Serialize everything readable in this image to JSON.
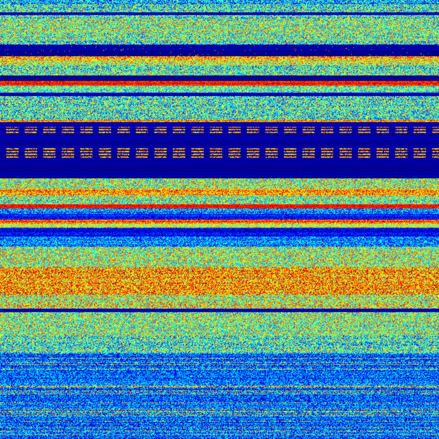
{
  "chart_data": {
    "type": "heatmap",
    "colormap": [
      "#00007f",
      "#0000ff",
      "#007fff",
      "#00ffff",
      "#7fff7f",
      "#ffff00",
      "#ff7f00",
      "#ff0000",
      "#7f0000"
    ],
    "grid": false
  }
}
